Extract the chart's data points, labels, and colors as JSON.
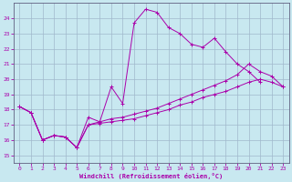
{
  "xlabel": "Windchill (Refroidissement éolien,°C)",
  "bg_color": "#c8e8f0",
  "grid_color": "#a0b8cc",
  "line_color": "#aa00aa",
  "xlim": [
    -0.5,
    23.5
  ],
  "ylim": [
    14.5,
    25.0
  ],
  "yticks": [
    15,
    16,
    17,
    18,
    19,
    20,
    21,
    22,
    23,
    24
  ],
  "xticks": [
    0,
    1,
    2,
    3,
    4,
    5,
    6,
    7,
    8,
    9,
    10,
    11,
    12,
    13,
    14,
    15,
    16,
    17,
    18,
    19,
    20,
    21,
    22,
    23
  ],
  "series1_x": [
    0,
    1,
    2,
    3,
    4,
    5,
    6,
    7,
    8,
    9,
    10,
    11,
    12,
    13,
    14,
    15,
    16,
    17,
    18,
    19,
    20,
    21
  ],
  "series1_y": [
    18.2,
    17.8,
    16.0,
    16.3,
    16.2,
    15.5,
    17.5,
    17.2,
    19.5,
    18.4,
    23.7,
    24.6,
    24.4,
    23.4,
    23.0,
    22.3,
    22.1,
    22.7,
    21.8,
    21.0,
    20.5,
    19.8
  ],
  "series2_x": [
    0,
    1,
    2,
    3,
    4,
    5,
    6,
    7,
    8,
    9,
    10,
    11,
    12,
    13,
    14,
    15,
    16,
    17,
    18,
    19,
    20,
    21,
    22,
    23
  ],
  "series2_y": [
    18.2,
    17.8,
    16.0,
    16.3,
    16.2,
    15.5,
    17.0,
    17.2,
    17.4,
    17.5,
    17.7,
    17.9,
    18.1,
    18.4,
    18.7,
    19.0,
    19.3,
    19.6,
    19.9,
    20.3,
    21.0,
    20.5,
    20.2,
    19.5
  ],
  "series3_x": [
    0,
    1,
    2,
    3,
    4,
    5,
    6,
    7,
    8,
    9,
    10,
    11,
    12,
    13,
    14,
    15,
    16,
    17,
    18,
    19,
    20,
    21,
    22,
    23
  ],
  "series3_y": [
    18.2,
    17.8,
    16.0,
    16.3,
    16.2,
    15.5,
    17.0,
    17.1,
    17.2,
    17.3,
    17.4,
    17.6,
    17.8,
    18.0,
    18.3,
    18.5,
    18.8,
    19.0,
    19.2,
    19.5,
    19.8,
    20.0,
    19.8,
    19.5
  ]
}
